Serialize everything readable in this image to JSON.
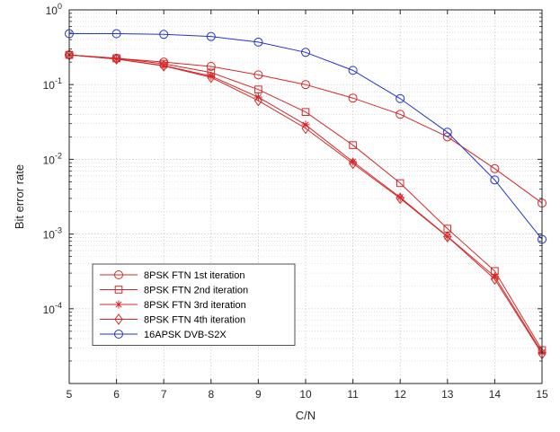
{
  "chart_data": {
    "type": "line",
    "title": "",
    "xlabel": "C/N",
    "ylabel": "Bit error rate",
    "xlim": [
      5,
      15
    ],
    "ylim": [
      1e-05,
      1
    ],
    "yscale": "log",
    "grid": true,
    "legend_position": "bottom-left",
    "x_ticks": [
      "5",
      "6",
      "7",
      "8",
      "9",
      "10",
      "11",
      "12",
      "13",
      "14",
      "15"
    ],
    "y_ticks": [
      {
        "value": 1,
        "base": "10",
        "exp": "0"
      },
      {
        "value": 0.1,
        "base": "10",
        "exp": "-1"
      },
      {
        "value": 0.01,
        "base": "10",
        "exp": "-2"
      },
      {
        "value": 0.001,
        "base": "10",
        "exp": "-3"
      },
      {
        "value": 0.0001,
        "base": "10",
        "exp": "-4"
      }
    ],
    "x": [
      5,
      6,
      7,
      8,
      9,
      10,
      11,
      12,
      13,
      14,
      15
    ],
    "series": [
      {
        "name": "8PSK FTN 1st iteration",
        "marker": "circle",
        "color": "#d62728",
        "values": [
          0.25,
          0.225,
          0.2,
          0.175,
          0.135,
          0.1,
          0.066,
          0.04,
          0.02,
          0.0075,
          0.0026
        ]
      },
      {
        "name": "8PSK FTN 2nd iteration",
        "marker": "square",
        "color": "#d62728",
        "values": [
          0.25,
          0.225,
          0.19,
          0.145,
          0.086,
          0.043,
          0.0155,
          0.0048,
          0.00118,
          0.00032,
          2.8e-05
        ]
      },
      {
        "name": "8PSK FTN 3rd iteration",
        "marker": "star",
        "color": "#d62728",
        "values": [
          0.25,
          0.22,
          0.18,
          0.13,
          0.068,
          0.029,
          0.0093,
          0.0031,
          0.00093,
          0.00027,
          2.6e-05
        ]
      },
      {
        "name": "8PSK FTN 4th iteration",
        "marker": "diamond",
        "color": "#d62728",
        "values": [
          0.25,
          0.22,
          0.178,
          0.125,
          0.061,
          0.026,
          0.0088,
          0.003,
          0.00092,
          0.00025,
          2.5e-05
        ]
      },
      {
        "name": "16APSK DVB-S2X",
        "marker": "circle",
        "color": "#2233cc",
        "values": [
          0.48,
          0.48,
          0.47,
          0.44,
          0.37,
          0.27,
          0.155,
          0.065,
          0.023,
          0.0053,
          0.00085
        ]
      }
    ]
  }
}
